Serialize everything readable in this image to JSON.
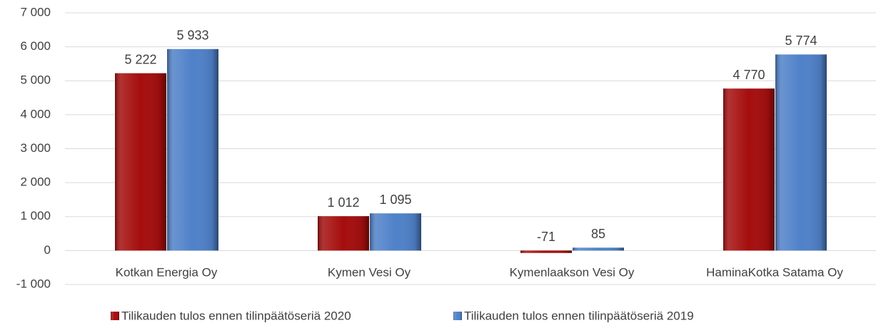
{
  "chart_data": {
    "type": "bar",
    "categories": [
      "Kotkan Energia Oy",
      "Kymen Vesi Oy",
      "Kymenlaakson Vesi Oy",
      "HaminaKotka Satama Oy"
    ],
    "series": [
      {
        "name": "Tilikauden tulos ennen tilinpäätöseriä 2020",
        "color": "#a50d0d",
        "values": [
          5222,
          1012,
          -71,
          4770
        ],
        "value_labels": [
          "5 222",
          "1 012",
          "-71",
          "4 770"
        ]
      },
      {
        "name": "Tilikauden tulos ennen tilinpäätöseriä 2019",
        "color": "#4f81c9",
        "values": [
          5933,
          1095,
          85,
          5774
        ],
        "value_labels": [
          "5 933",
          "1 095",
          "85",
          "5 774"
        ]
      }
    ],
    "ylim": [
      -1000,
      7000
    ],
    "yticks": [
      {
        "value": -1000,
        "label": "-1 000"
      },
      0,
      {
        "value": 1000,
        "label": "1 000"
      },
      {
        "value": 2000,
        "label": "2 000"
      },
      {
        "value": 3000,
        "label": "3 000"
      },
      {
        "value": 4000,
        "label": "4 000"
      },
      {
        "value": 5000,
        "label": "5 000"
      },
      {
        "value": 6000,
        "label": "6 000"
      },
      {
        "value": 7000,
        "label": "7 000"
      }
    ],
    "grid": true,
    "legend": "bottom"
  }
}
